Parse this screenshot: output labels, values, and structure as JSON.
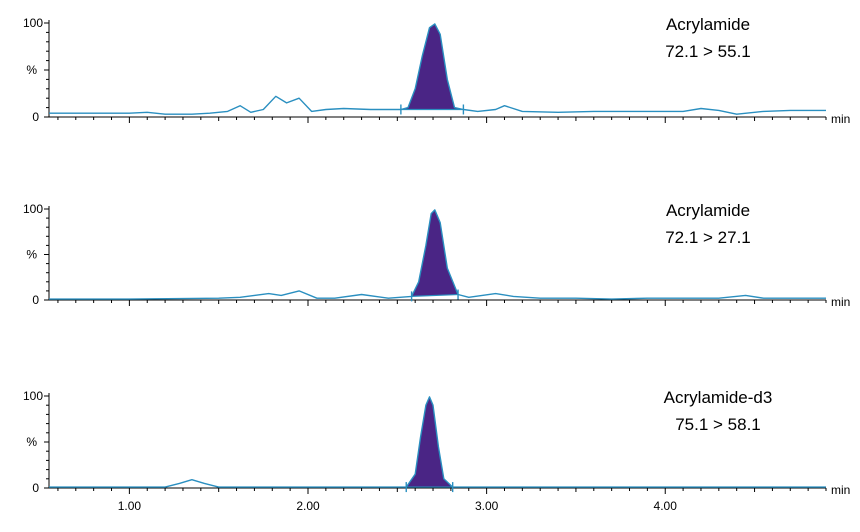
{
  "chart_data": [
    {
      "type": "line",
      "title": "Acrylamide",
      "transition": "72.1 > 55.1",
      "xlabel": "min",
      "ylabel": "%",
      "yticks": [
        "100",
        "0"
      ],
      "xlim": [
        0.55,
        4.9
      ],
      "ylim": [
        0,
        100
      ],
      "integration_window": [
        2.52,
        2.87
      ],
      "series": [
        {
          "x": [
            0.55,
            0.8,
            1.0,
            1.1,
            1.2,
            1.35,
            1.45,
            1.55,
            1.62,
            1.68,
            1.75,
            1.82,
            1.88,
            1.95,
            2.02,
            2.1,
            2.2,
            2.35,
            2.45,
            2.52,
            2.56,
            2.6,
            2.64,
            2.68,
            2.71,
            2.74,
            2.78,
            2.82,
            2.87,
            2.95,
            3.05,
            3.1,
            3.2,
            3.4,
            3.6,
            3.9,
            4.1,
            4.2,
            4.3,
            4.4,
            4.55,
            4.7,
            4.9
          ],
          "y": [
            4,
            4,
            4,
            5,
            3,
            3,
            4,
            6,
            12,
            5,
            8,
            22,
            15,
            20,
            6,
            8,
            9,
            8,
            8,
            8,
            10,
            30,
            65,
            95,
            99,
            88,
            40,
            10,
            8,
            6,
            8,
            12,
            6,
            5,
            6,
            6,
            6,
            9,
            7,
            3,
            6,
            7,
            7
          ]
        }
      ]
    },
    {
      "type": "line",
      "title": "Acrylamide",
      "transition": "72.1 > 27.1",
      "xlabel": "min",
      "ylabel": "%",
      "yticks": [
        "100",
        "0"
      ],
      "xlim": [
        0.55,
        4.9
      ],
      "ylim": [
        0,
        100
      ],
      "integration_window": [
        2.58,
        2.84
      ],
      "series": [
        {
          "x": [
            0.55,
            1.0,
            1.5,
            1.62,
            1.7,
            1.78,
            1.85,
            1.95,
            2.05,
            2.15,
            2.3,
            2.45,
            2.58,
            2.62,
            2.66,
            2.69,
            2.71,
            2.74,
            2.78,
            2.84,
            2.9,
            3.05,
            3.15,
            3.3,
            3.5,
            3.7,
            3.9,
            4.1,
            4.3,
            4.45,
            4.55,
            4.7,
            4.9
          ],
          "y": [
            1,
            1,
            2,
            3,
            5,
            7,
            5,
            10,
            2,
            2,
            6,
            2,
            4,
            20,
            60,
            95,
            99,
            85,
            35,
            6,
            3,
            7,
            4,
            2,
            2,
            1,
            2,
            2,
            2,
            5,
            2,
            2,
            2
          ]
        }
      ]
    },
    {
      "type": "line",
      "title": "Acrylamide-d3",
      "transition": "75.1 > 58.1",
      "xlabel": "min",
      "ylabel": "%",
      "yticks": [
        "100",
        "0"
      ],
      "xticks": [
        "1.00",
        "2.00",
        "3.00",
        "4.00"
      ],
      "xlim": [
        0.55,
        4.9
      ],
      "ylim": [
        0,
        100
      ],
      "integration_window": [
        2.55,
        2.81
      ],
      "series": [
        {
          "x": [
            0.55,
            1.2,
            1.28,
            1.35,
            1.42,
            1.5,
            2.0,
            2.55,
            2.6,
            2.63,
            2.66,
            2.68,
            2.7,
            2.73,
            2.76,
            2.81,
            2.9,
            3.5,
            4.0,
            4.5,
            4.9
          ],
          "y": [
            1,
            1,
            5,
            9,
            5,
            1,
            1,
            1,
            15,
            55,
            90,
            99,
            90,
            45,
            10,
            1,
            1,
            1,
            1,
            1,
            1
          ]
        }
      ]
    }
  ],
  "colors": {
    "trace": "#2a8fc0",
    "peak_fill": "#4a2585",
    "axis": "#000000"
  }
}
